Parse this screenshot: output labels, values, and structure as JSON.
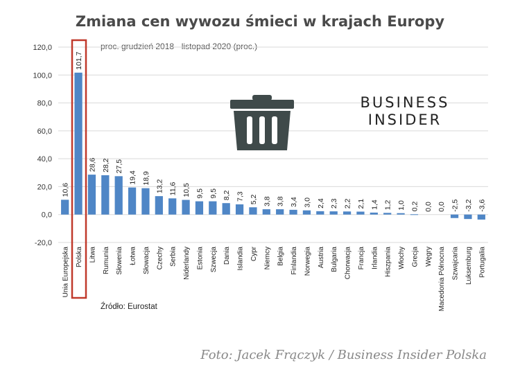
{
  "chart_data": {
    "type": "bar",
    "title": "Zmiana cen wywozu śmieci w krajach Europy",
    "subtitle": "proc. grudzień 2018 - listopad 2020 (proc.)",
    "source": "Źródło: Eurostat",
    "logo_line1": "BUSINESS",
    "logo_line2": "INSIDER",
    "credit": "Foto: Jacek Frączyk / Business Insider Polska",
    "categories": [
      "Unia Europejska",
      "Polska",
      "Litwa",
      "Rumunia",
      "Słowenia",
      "Łotwa",
      "Słowacja",
      "Czechy",
      "Serbia",
      "Niderlandy",
      "Estonia",
      "Szwecja",
      "Dania",
      "Islandia",
      "Cypr",
      "Niemcy",
      "Belgia",
      "Finlandia",
      "Norwegia",
      "Austria",
      "Bulgaria",
      "Chorwacja",
      "Francja",
      "Irlandia",
      "Hiszpania",
      "Włochy",
      "Grecja",
      "Węgry",
      "Macedonia Północna",
      "Szwajcaria",
      "Luksemburg",
      "Portugalia"
    ],
    "values": [
      10.6,
      101.7,
      28.6,
      28.2,
      27.5,
      19.4,
      18.9,
      13.2,
      11.6,
      10.5,
      9.5,
      9.5,
      8.2,
      7.3,
      5.2,
      3.8,
      3.8,
      3.4,
      3.0,
      2.4,
      2.3,
      2.2,
      2.1,
      1.4,
      1.2,
      1.0,
      0.2,
      0.0,
      0.0,
      -2.5,
      -3.2,
      -3.6
    ],
    "value_labels": [
      "10,6",
      "101,7",
      "28,6",
      "28,2",
      "27,5",
      "19,4",
      "18,9",
      "13,2",
      "11,6",
      "10,5",
      "9,5",
      "9,5",
      "8,2",
      "7,3",
      "5,2",
      "3,8",
      "3,8",
      "3,4",
      "3,0",
      "2,4",
      "2,3",
      "2,2",
      "2,1",
      "1,4",
      "1,2",
      "1,0",
      "0,2",
      "0,0",
      "0,0",
      "-2,5",
      "-3,2",
      "-3,6"
    ],
    "yticks": [
      "120,0",
      "100,0",
      "80,0",
      "60,0",
      "40,0",
      "20,0",
      "0,0",
      "-20,0"
    ],
    "ylim": [
      -20,
      120
    ],
    "grid": true,
    "highlight": "Polska",
    "bar_color": "#4f86c6",
    "highlight_color": "#c0392b"
  }
}
